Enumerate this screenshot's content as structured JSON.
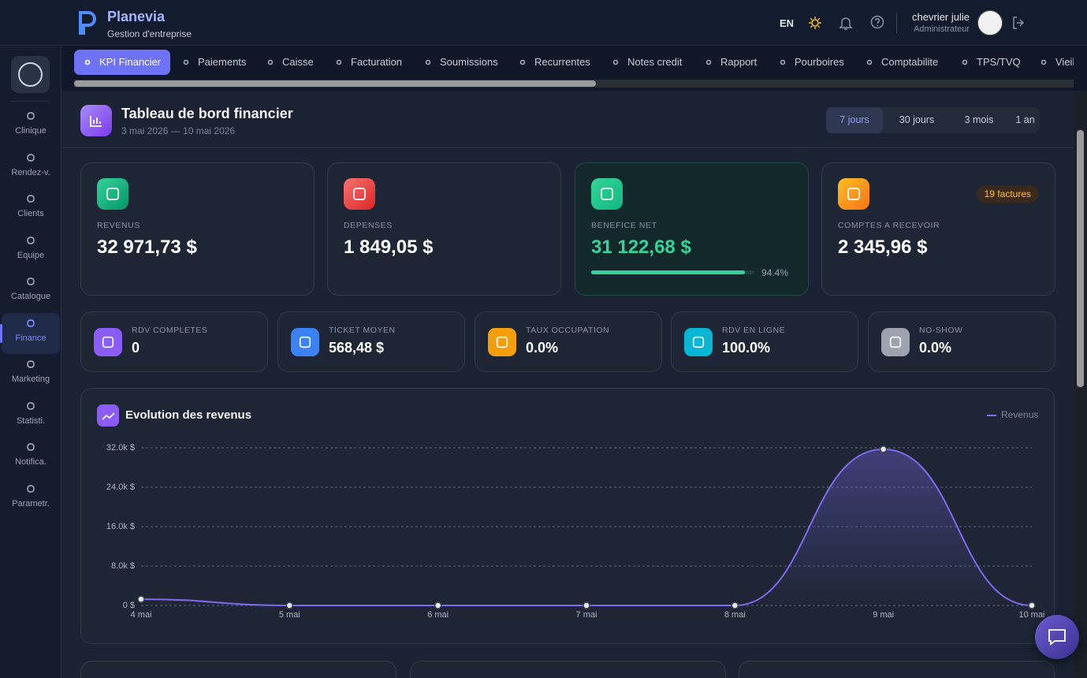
{
  "header": {
    "brand": "Planevia",
    "tagline": "Gestion d'entreprise",
    "language": "EN",
    "user_name": "chevrier julie",
    "user_role": "Administrateur"
  },
  "sidebar": [
    "Clinique",
    "Rendez-v.",
    "Clients",
    "Equipe",
    "Catalogue",
    "Finance",
    "Marketing",
    "Statisti.",
    "Notifica.",
    "Parametr."
  ],
  "tabs": [
    "KPI Financier",
    "Paiements",
    "Caisse",
    "Facturation",
    "Soumissions",
    "Recurrentes",
    "Notes credit",
    "Rapport",
    "Pourboires",
    "Comptabilite",
    "TPS/TVQ",
    "Vieil"
  ],
  "dashboard": {
    "title": "Tableau de bord financier",
    "date_range": "3 mai 2026 — 10 mai 2026",
    "periods": [
      "7 jours",
      "30 jours",
      "3 mois",
      "1 an"
    ]
  },
  "kpis": [
    {
      "label": "REVENUS",
      "value": "32 971,73 $"
    },
    {
      "label": "DEPENSES",
      "value": "1 849,05 $"
    },
    {
      "label": "BENEFICE NET",
      "value": "31 122,68 $",
      "progress": {
        "value": 94.4,
        "label": "94.4%"
      }
    },
    {
      "label": "COMPTES A RECEVOIR",
      "value": "2 345,96 $",
      "badge": "19 factures"
    }
  ],
  "stats": [
    {
      "label": "RDV COMPLETES",
      "value": "0"
    },
    {
      "label": "TICKET MOYEN",
      "value": "568,48 $"
    },
    {
      "label": "TAUX OCCUPATION",
      "value": "0.0%"
    },
    {
      "label": "RDV EN LIGNE",
      "value": "100.0%"
    },
    {
      "label": "NO-SHOW",
      "value": "0.0%"
    }
  ],
  "chart_data": {
    "type": "line",
    "title": "Evolution des revenus",
    "categories": [
      "4 mai",
      "5 mai",
      "6 mai",
      "7 mai",
      "8 mai",
      "9 mai",
      "10 mai"
    ],
    "series": [
      {
        "name": "Revenus",
        "color": "#7c6cf0",
        "values": [
          1270,
          0,
          0,
          0,
          0,
          31700,
          0
        ]
      }
    ],
    "ylim": [
      0,
      32000
    ],
    "yticks": [
      {
        "value": 0,
        "label": "0 $"
      },
      {
        "value": 8000,
        "label": "8.0k $"
      },
      {
        "value": 16000,
        "label": "16.0k $"
      },
      {
        "value": 24000,
        "label": "24.0k $"
      },
      {
        "value": 32000,
        "label": "32.0k $"
      }
    ],
    "grid": true,
    "legend": "top-right"
  }
}
